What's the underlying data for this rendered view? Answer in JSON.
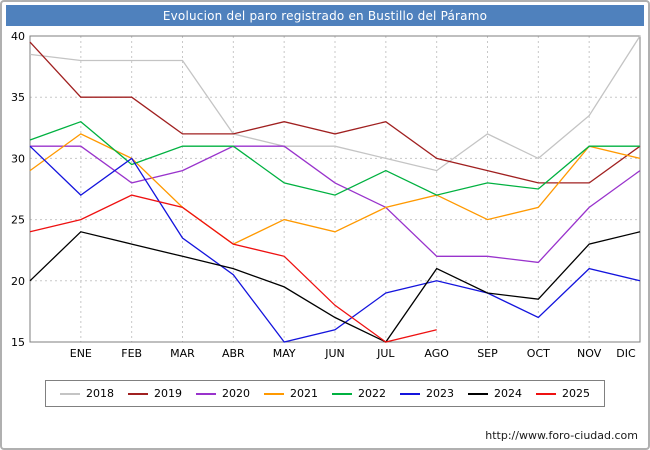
{
  "title": "Evolucion del paro registrado en Bustillo del Páramo",
  "footer": {
    "url": "http://www.foro-ciudad.com"
  },
  "chart_data": {
    "type": "line",
    "title": "Evolucion del paro registrado en Bustillo del Páramo",
    "categories": [
      "",
      "ENE",
      "FEB",
      "MAR",
      "ABR",
      "MAY",
      "JUN",
      "JUL",
      "AGO",
      "SEP",
      "OCT",
      "NOV",
      "DIC"
    ],
    "xlabel": "",
    "ylabel": "",
    "ylim": [
      15,
      40
    ],
    "yticks": [
      15,
      20,
      25,
      30,
      35,
      40
    ],
    "grid": true,
    "legend_position": "bottom",
    "series": [
      {
        "name": "2018",
        "color": "#c4c4c4",
        "values": [
          38.5,
          38,
          38,
          38,
          32,
          31,
          31,
          30,
          29,
          32,
          30,
          33.5,
          40
        ]
      },
      {
        "name": "2019",
        "color": "#a02020",
        "values": [
          39.5,
          35,
          35,
          32,
          32,
          33,
          32,
          33,
          30,
          29,
          28,
          28,
          31
        ]
      },
      {
        "name": "2020",
        "color": "#9933cc",
        "values": [
          31,
          31,
          28,
          29,
          31,
          31,
          28,
          26,
          22,
          22,
          21.5,
          26,
          29
        ]
      },
      {
        "name": "2021",
        "color": "#ff9900",
        "values": [
          29,
          32,
          30,
          26,
          23,
          25,
          24,
          26,
          27,
          25,
          26,
          31,
          30
        ]
      },
      {
        "name": "2022",
        "color": "#00b140",
        "values": [
          31.5,
          33,
          29.5,
          31,
          31,
          28,
          27,
          29,
          27,
          28,
          27.5,
          31,
          31
        ]
      },
      {
        "name": "2023",
        "color": "#1414dd",
        "values": [
          31,
          27,
          30,
          23.5,
          20.5,
          15,
          16,
          19,
          20,
          19,
          17,
          21,
          20
        ]
      },
      {
        "name": "2024",
        "color": "#000000",
        "values": [
          20,
          24,
          23,
          22,
          21,
          19.5,
          17,
          15,
          21,
          19,
          18.5,
          23,
          24
        ]
      },
      {
        "name": "2025",
        "color": "#ee1111",
        "values": [
          24,
          25,
          27,
          26,
          23,
          22,
          18,
          15,
          16,
          null,
          null,
          null,
          null
        ]
      }
    ]
  }
}
